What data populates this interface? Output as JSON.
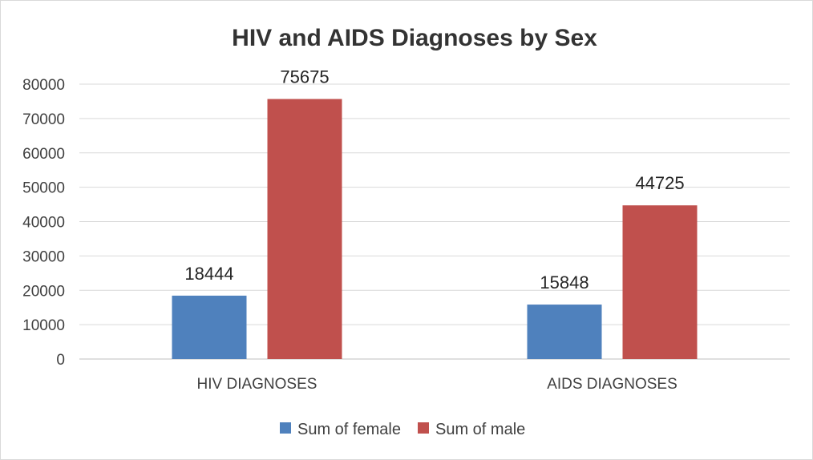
{
  "chart_data": {
    "type": "bar",
    "title": "HIV and AIDS Diagnoses by Sex",
    "categories": [
      "HIV DIAGNOSES",
      "AIDS DIAGNOSES"
    ],
    "series": [
      {
        "name": "Sum of female",
        "color": "#4f81bd",
        "values": [
          18444,
          15848
        ]
      },
      {
        "name": "Sum of male",
        "color": "#c0504d",
        "values": [
          75675,
          44725
        ]
      }
    ],
    "ylim": [
      0,
      80000
    ],
    "yticks": [
      0,
      10000,
      20000,
      30000,
      40000,
      50000,
      60000,
      70000,
      80000
    ],
    "grid": true,
    "legend_position": "bottom",
    "data_labels": true
  }
}
